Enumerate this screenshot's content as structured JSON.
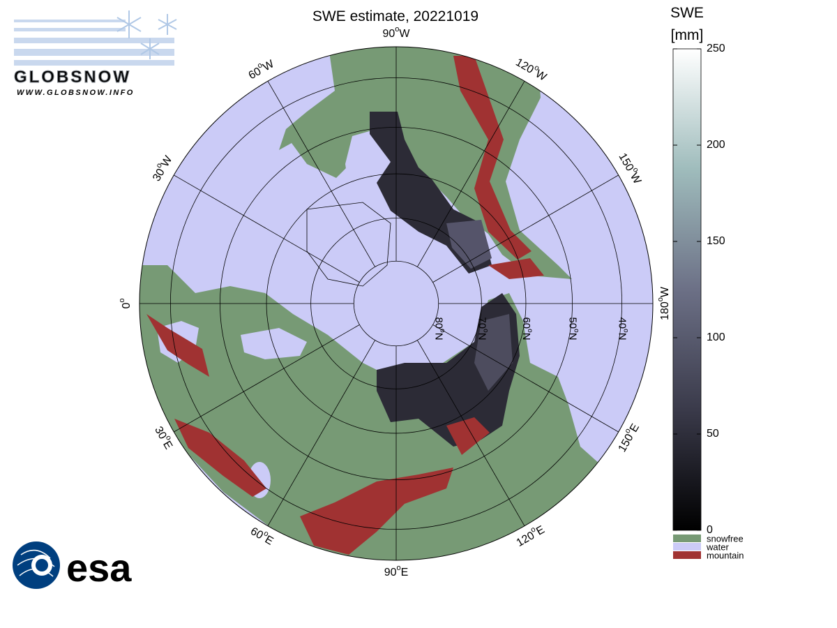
{
  "title": "SWE estimate, 20221019",
  "map": {
    "degree_symbol": "o",
    "meridians": [
      {
        "lon": -90,
        "label": "90",
        "hemisphere": "W"
      },
      {
        "lon": -120,
        "label": "120",
        "hemisphere": "W"
      },
      {
        "lon": -150,
        "label": "150",
        "hemisphere": "W"
      },
      {
        "lon": 180,
        "label": "180",
        "hemisphere": "W"
      },
      {
        "lon": 150,
        "label": "150",
        "hemisphere": "E"
      },
      {
        "lon": 120,
        "label": "120",
        "hemisphere": "E"
      },
      {
        "lon": 90,
        "label": "90",
        "hemisphere": "E"
      },
      {
        "lon": 60,
        "label": "60",
        "hemisphere": "E"
      },
      {
        "lon": 30,
        "label": "30",
        "hemisphere": "E"
      },
      {
        "lon": 0,
        "label": "0"
      },
      {
        "lon": -30,
        "label": "30",
        "hemisphere": "W"
      },
      {
        "lon": -60,
        "label": "60",
        "hemisphere": "W"
      }
    ],
    "parallels": [
      80,
      70,
      60,
      50,
      40
    ],
    "parallel_hemisphere": "N"
  },
  "colorbar": {
    "title": "SWE",
    "unit": "[mm]",
    "lim": [
      0,
      250
    ],
    "ticks": [
      0,
      50,
      100,
      150,
      200,
      250
    ]
  },
  "legend": [
    {
      "label": "snowfree",
      "color": "#779a75"
    },
    {
      "label": "water",
      "color": "#cbcbf7"
    },
    {
      "label": "mountain",
      "color": "#a03232"
    }
  ],
  "logos": {
    "globsnow": "GLOBSNOW",
    "globsnow_url": "WWW.GLOBSNOW.INFO",
    "esa": "esa"
  }
}
